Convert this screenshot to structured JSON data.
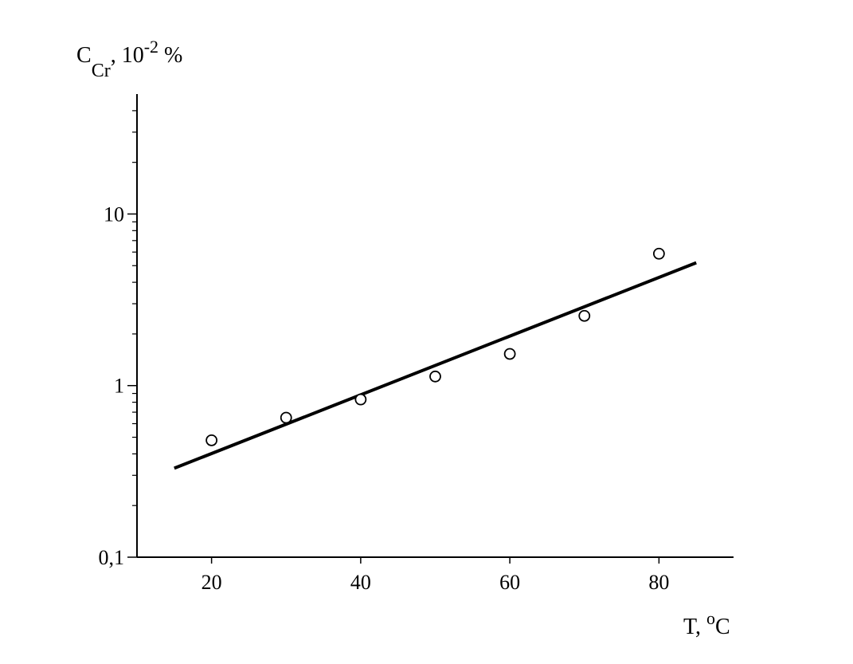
{
  "chart_data": {
    "type": "scatter",
    "y_label_parts": [
      "C",
      "Cr",
      ", 10",
      "-2",
      " %"
    ],
    "x_label_parts": [
      "T, ",
      "o",
      "C"
    ],
    "xlim": [
      10,
      90
    ],
    "xticks": [
      20,
      40,
      60,
      80
    ],
    "ylim": [
      0.1,
      50
    ],
    "log_y": true,
    "yticks": [
      {
        "value": 0.1,
        "label": "0,1"
      },
      1,
      10
    ],
    "y_minor_ticks": [
      0.2,
      0.3,
      0.4,
      0.5,
      0.6,
      0.7,
      0.8,
      0.9,
      2,
      3,
      4,
      5,
      6,
      7,
      8,
      9,
      20,
      30,
      40
    ],
    "color": "#000000",
    "x": [
      20,
      30,
      40,
      50,
      60,
      70,
      80
    ],
    "values": [
      0.48,
      0.65,
      0.83,
      1.13,
      1.53,
      2.55,
      5.87
    ],
    "fit": {
      "x": [
        15,
        85
      ],
      "values": [
        0.33,
        5.2
      ]
    }
  }
}
